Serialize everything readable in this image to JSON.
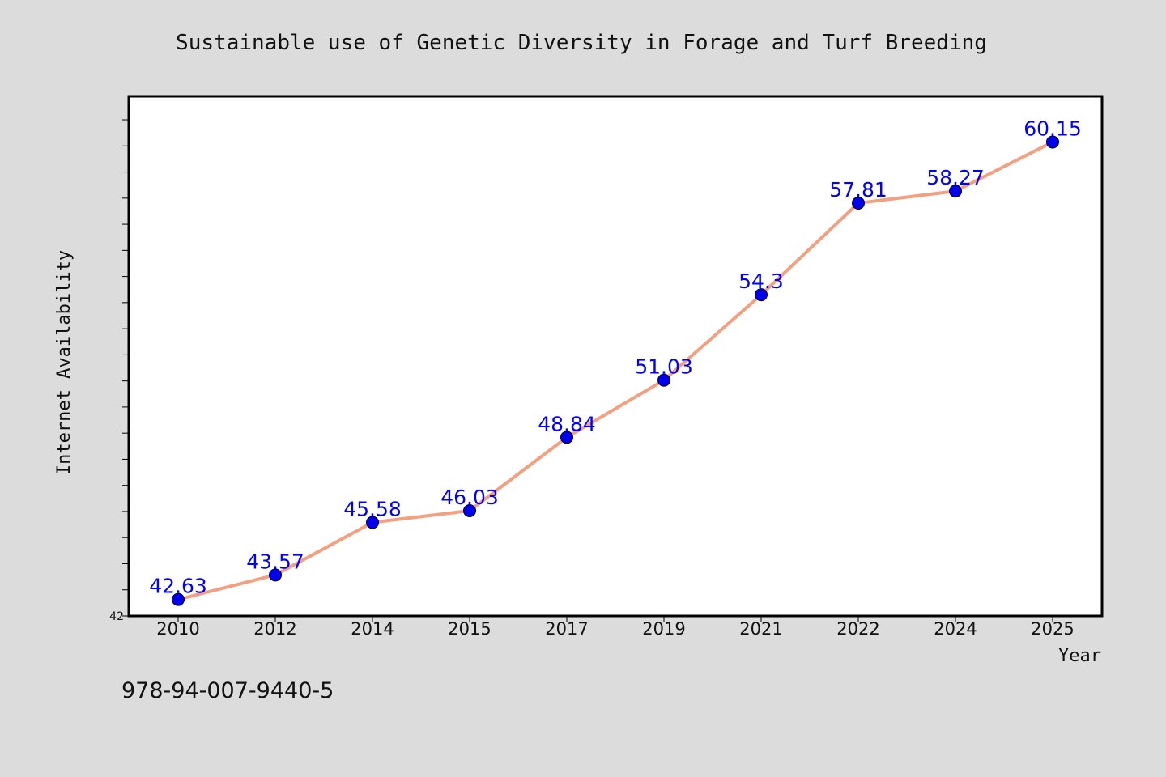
{
  "footer": {
    "isbn": "978-94-007-9440-5"
  },
  "colors": {
    "background": "#dcdcdc",
    "plot_background": "#ffffff",
    "line": "#f4a080",
    "marker": "#0000ee",
    "data_label": "#0000ff"
  },
  "chart_data": {
    "type": "line",
    "title": "Sustainable use of Genetic Diversity in Forage and Turf Breeding",
    "xlabel": "Year",
    "ylabel": "Internet Availability",
    "categories": [
      "2010",
      "2012",
      "2014",
      "2015",
      "2017",
      "2019",
      "2021",
      "2022",
      "2024",
      "2025"
    ],
    "series": [
      {
        "values": [
          42.63,
          43.57,
          45.58,
          46.03,
          48.84,
          51.03,
          54.3,
          57.81,
          58.27,
          60.15
        ]
      }
    ],
    "data_labels": [
      "42.63",
      "43.57",
      "45.58",
      "46.03",
      "48.84",
      "51.03",
      "54.3",
      "57.81",
      "58.27",
      "60.15"
    ],
    "y_min_label": "42",
    "ylim": [
      42,
      61.9
    ],
    "y_minor_tick_step": 1,
    "grid": false,
    "legend": "none"
  }
}
